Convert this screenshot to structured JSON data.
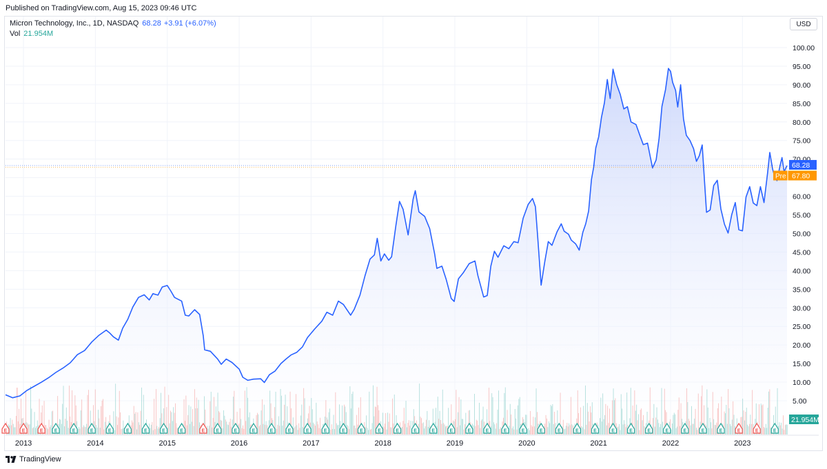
{
  "header": {
    "published": "Published on TradingView.com, Aug 15, 2023 09:46 UTC"
  },
  "legend": {
    "symbol": "Micron Technology, Inc., 1D, NASDAQ",
    "last": "68.28",
    "change": "+3.91 (+6.07%)",
    "vol_label": "Vol",
    "vol_value": "21.954M"
  },
  "currency": "USD",
  "footer": {
    "brand": "TradingView"
  },
  "colors": {
    "line": "#2962ff",
    "area_top": "#c7d3fb",
    "grid": "#f0f3fa",
    "vol_up": "#26a69a",
    "vol_down": "#ef5350",
    "pre": "#ff9800",
    "earnings_green": "#26a69a",
    "earnings_red": "#ef5350"
  },
  "chart_data": {
    "type": "area",
    "x_unit": "year",
    "y_axis": {
      "min": 0,
      "max": 102,
      "ticks": [
        "5.00",
        "10.00",
        "15.00",
        "20.00",
        "25.00",
        "30.00",
        "35.00",
        "40.00",
        "45.00",
        "50.00",
        "55.00",
        "60.00",
        "65.00",
        "70.00",
        "75.00",
        "80.00",
        "85.00",
        "90.00",
        "95.00",
        "100.00"
      ]
    },
    "x_axis": {
      "range": [
        2012.75,
        2023.62
      ],
      "ticks": [
        {
          "label": "2013",
          "x": 2013.0
        },
        {
          "label": "2014",
          "x": 2014.0
        },
        {
          "label": "2015",
          "x": 2015.0
        },
        {
          "label": "2016",
          "x": 2016.0
        },
        {
          "label": "2017",
          "x": 2017.0
        },
        {
          "label": "2018",
          "x": 2018.0
        },
        {
          "label": "2019",
          "x": 2019.0
        },
        {
          "label": "2020",
          "x": 2020.0
        },
        {
          "label": "2021",
          "x": 2021.0
        },
        {
          "label": "2022",
          "x": 2022.0
        },
        {
          "label": "2023",
          "x": 2023.0
        }
      ]
    },
    "series": [
      {
        "points": [
          [
            2012.75,
            6.6
          ],
          [
            2012.85,
            5.8
          ],
          [
            2012.95,
            6.3
          ],
          [
            2013.05,
            7.8
          ],
          [
            2013.15,
            8.9
          ],
          [
            2013.25,
            10.0
          ],
          [
            2013.35,
            11.2
          ],
          [
            2013.45,
            12.6
          ],
          [
            2013.55,
            13.8
          ],
          [
            2013.65,
            15.2
          ],
          [
            2013.75,
            17.4
          ],
          [
            2013.85,
            18.5
          ],
          [
            2013.95,
            20.8
          ],
          [
            2014.05,
            22.6
          ],
          [
            2014.15,
            24.0
          ],
          [
            2014.2,
            23.2
          ],
          [
            2014.25,
            22.2
          ],
          [
            2014.32,
            21.3
          ],
          [
            2014.38,
            24.5
          ],
          [
            2014.45,
            26.9
          ],
          [
            2014.52,
            30.2
          ],
          [
            2014.6,
            32.8
          ],
          [
            2014.68,
            33.5
          ],
          [
            2014.75,
            32.1
          ],
          [
            2014.8,
            33.8
          ],
          [
            2014.87,
            33.4
          ],
          [
            2014.93,
            35.6
          ],
          [
            2015.0,
            36.0
          ],
          [
            2015.05,
            34.5
          ],
          [
            2015.1,
            32.8
          ],
          [
            2015.2,
            31.8
          ],
          [
            2015.25,
            28.0
          ],
          [
            2015.3,
            27.8
          ],
          [
            2015.38,
            29.5
          ],
          [
            2015.45,
            28.2
          ],
          [
            2015.5,
            22.5
          ],
          [
            2015.52,
            18.7
          ],
          [
            2015.6,
            18.3
          ],
          [
            2015.7,
            16.2
          ],
          [
            2015.75,
            14.8
          ],
          [
            2015.82,
            16.2
          ],
          [
            2015.9,
            15.3
          ],
          [
            2016.0,
            13.5
          ],
          [
            2016.05,
            11.3
          ],
          [
            2016.12,
            10.5
          ],
          [
            2016.2,
            10.8
          ],
          [
            2016.3,
            10.9
          ],
          [
            2016.35,
            9.9
          ],
          [
            2016.42,
            12.0
          ],
          [
            2016.5,
            13.0
          ],
          [
            2016.58,
            15.0
          ],
          [
            2016.65,
            16.2
          ],
          [
            2016.72,
            17.3
          ],
          [
            2016.8,
            18.0
          ],
          [
            2016.88,
            19.5
          ],
          [
            2016.95,
            22.0
          ],
          [
            2017.05,
            24.3
          ],
          [
            2017.15,
            26.4
          ],
          [
            2017.22,
            28.8
          ],
          [
            2017.3,
            28.0
          ],
          [
            2017.38,
            31.8
          ],
          [
            2017.45,
            30.9
          ],
          [
            2017.55,
            28.0
          ],
          [
            2017.6,
            29.6
          ],
          [
            2017.68,
            33.4
          ],
          [
            2017.75,
            38.6
          ],
          [
            2017.82,
            43.1
          ],
          [
            2017.88,
            44.2
          ],
          [
            2017.92,
            48.7
          ],
          [
            2017.97,
            42.6
          ],
          [
            2018.02,
            44.5
          ],
          [
            2018.08,
            42.8
          ],
          [
            2018.12,
            43.7
          ],
          [
            2018.18,
            52.2
          ],
          [
            2018.23,
            58.6
          ],
          [
            2018.28,
            56.5
          ],
          [
            2018.35,
            49.6
          ],
          [
            2018.42,
            59.3
          ],
          [
            2018.45,
            61.5
          ],
          [
            2018.5,
            55.8
          ],
          [
            2018.58,
            54.6
          ],
          [
            2018.65,
            51.3
          ],
          [
            2018.72,
            44.4
          ],
          [
            2018.75,
            40.6
          ],
          [
            2018.82,
            41.2
          ],
          [
            2018.88,
            37.6
          ],
          [
            2018.95,
            32.5
          ],
          [
            2018.99,
            31.7
          ],
          [
            2019.05,
            37.8
          ],
          [
            2019.12,
            39.5
          ],
          [
            2019.2,
            41.9
          ],
          [
            2019.28,
            42.6
          ],
          [
            2019.32,
            38.7
          ],
          [
            2019.4,
            32.9
          ],
          [
            2019.45,
            33.3
          ],
          [
            2019.5,
            41.2
          ],
          [
            2019.55,
            45.2
          ],
          [
            2019.6,
            43.6
          ],
          [
            2019.68,
            46.7
          ],
          [
            2019.75,
            45.9
          ],
          [
            2019.82,
            47.8
          ],
          [
            2019.88,
            47.5
          ],
          [
            2019.95,
            54.1
          ],
          [
            2020.02,
            57.8
          ],
          [
            2020.08,
            59.4
          ],
          [
            2020.12,
            57.2
          ],
          [
            2020.15,
            49.6
          ],
          [
            2020.2,
            36.1
          ],
          [
            2020.25,
            42.3
          ],
          [
            2020.3,
            47.8
          ],
          [
            2020.35,
            46.8
          ],
          [
            2020.42,
            50.4
          ],
          [
            2020.48,
            52.6
          ],
          [
            2020.52,
            50.6
          ],
          [
            2020.58,
            49.8
          ],
          [
            2020.62,
            48.2
          ],
          [
            2020.68,
            47.2
          ],
          [
            2020.73,
            45.5
          ],
          [
            2020.78,
            50.3
          ],
          [
            2020.82,
            52.6
          ],
          [
            2020.86,
            56.0
          ],
          [
            2020.9,
            64.5
          ],
          [
            2020.93,
            67.8
          ],
          [
            2020.96,
            73.0
          ],
          [
            2021.0,
            76.0
          ],
          [
            2021.04,
            81.3
          ],
          [
            2021.08,
            85.1
          ],
          [
            2021.12,
            91.4
          ],
          [
            2021.16,
            86.3
          ],
          [
            2021.2,
            94.2
          ],
          [
            2021.25,
            90.1
          ],
          [
            2021.3,
            87.4
          ],
          [
            2021.35,
            83.5
          ],
          [
            2021.4,
            84.1
          ],
          [
            2021.45,
            80.0
          ],
          [
            2021.52,
            79.3
          ],
          [
            2021.58,
            76.0
          ],
          [
            2021.62,
            73.9
          ],
          [
            2021.68,
            74.3
          ],
          [
            2021.72,
            70.4
          ],
          [
            2021.75,
            67.6
          ],
          [
            2021.8,
            69.8
          ],
          [
            2021.84,
            75.5
          ],
          [
            2021.88,
            84.2
          ],
          [
            2021.93,
            88.7
          ],
          [
            2021.97,
            94.4
          ],
          [
            2022.0,
            93.6
          ],
          [
            2022.03,
            90.6
          ],
          [
            2022.07,
            88.5
          ],
          [
            2022.1,
            84.0
          ],
          [
            2022.14,
            90.0
          ],
          [
            2022.18,
            80.8
          ],
          [
            2022.22,
            76.4
          ],
          [
            2022.27,
            75.0
          ],
          [
            2022.32,
            72.8
          ],
          [
            2022.36,
            69.4
          ],
          [
            2022.4,
            70.9
          ],
          [
            2022.44,
            73.8
          ],
          [
            2022.47,
            64.8
          ],
          [
            2022.5,
            55.7
          ],
          [
            2022.55,
            56.3
          ],
          [
            2022.6,
            62.9
          ],
          [
            2022.65,
            64.3
          ],
          [
            2022.7,
            56.6
          ],
          [
            2022.75,
            52.5
          ],
          [
            2022.8,
            50.1
          ],
          [
            2022.85,
            55.0
          ],
          [
            2022.9,
            58.3
          ],
          [
            2022.95,
            51.0
          ],
          [
            2023.0,
            50.7
          ],
          [
            2023.05,
            59.8
          ],
          [
            2023.1,
            62.6
          ],
          [
            2023.15,
            58.2
          ],
          [
            2023.2,
            57.5
          ],
          [
            2023.25,
            62.6
          ],
          [
            2023.3,
            58.3
          ],
          [
            2023.35,
            66.3
          ],
          [
            2023.38,
            71.8
          ],
          [
            2023.42,
            67.3
          ],
          [
            2023.45,
            65.2
          ],
          [
            2023.48,
            64.2
          ],
          [
            2023.52,
            68.0
          ],
          [
            2023.55,
            70.4
          ],
          [
            2023.58,
            66.6
          ],
          [
            2023.62,
            68.28
          ]
        ]
      }
    ],
    "volume": {
      "label": "Vol",
      "last_label": "21.954M",
      "scale_max": 60,
      "unit": "M"
    },
    "price_labels": [
      {
        "label": "68.28",
        "value": 68.28,
        "color": "#2962ff"
      },
      {
        "prefix": "Pre",
        "label": "67.80",
        "value": 67.8,
        "color": "#ff9800"
      }
    ],
    "earnings_markers": {
      "glyph": "E",
      "dates": [
        2012.75,
        2013.0,
        2013.25,
        2013.45,
        2013.7,
        2013.95,
        2014.2,
        2014.45,
        2014.7,
        2014.95,
        2015.2,
        2015.5,
        2015.7,
        2015.95,
        2016.2,
        2016.45,
        2016.7,
        2016.95,
        2017.2,
        2017.45,
        2017.7,
        2017.95,
        2018.2,
        2018.45,
        2018.7,
        2018.95,
        2019.2,
        2019.45,
        2019.7,
        2019.95,
        2020.2,
        2020.45,
        2020.7,
        2020.95,
        2021.2,
        2021.45,
        2021.7,
        2021.95,
        2022.2,
        2022.45,
        2022.7,
        2022.95,
        2023.2,
        2023.45
      ],
      "red_dates": [
        2012.75,
        2013.0,
        2013.25,
        2015.5,
        2022.95,
        2023.2
      ]
    },
    "grid": true
  }
}
